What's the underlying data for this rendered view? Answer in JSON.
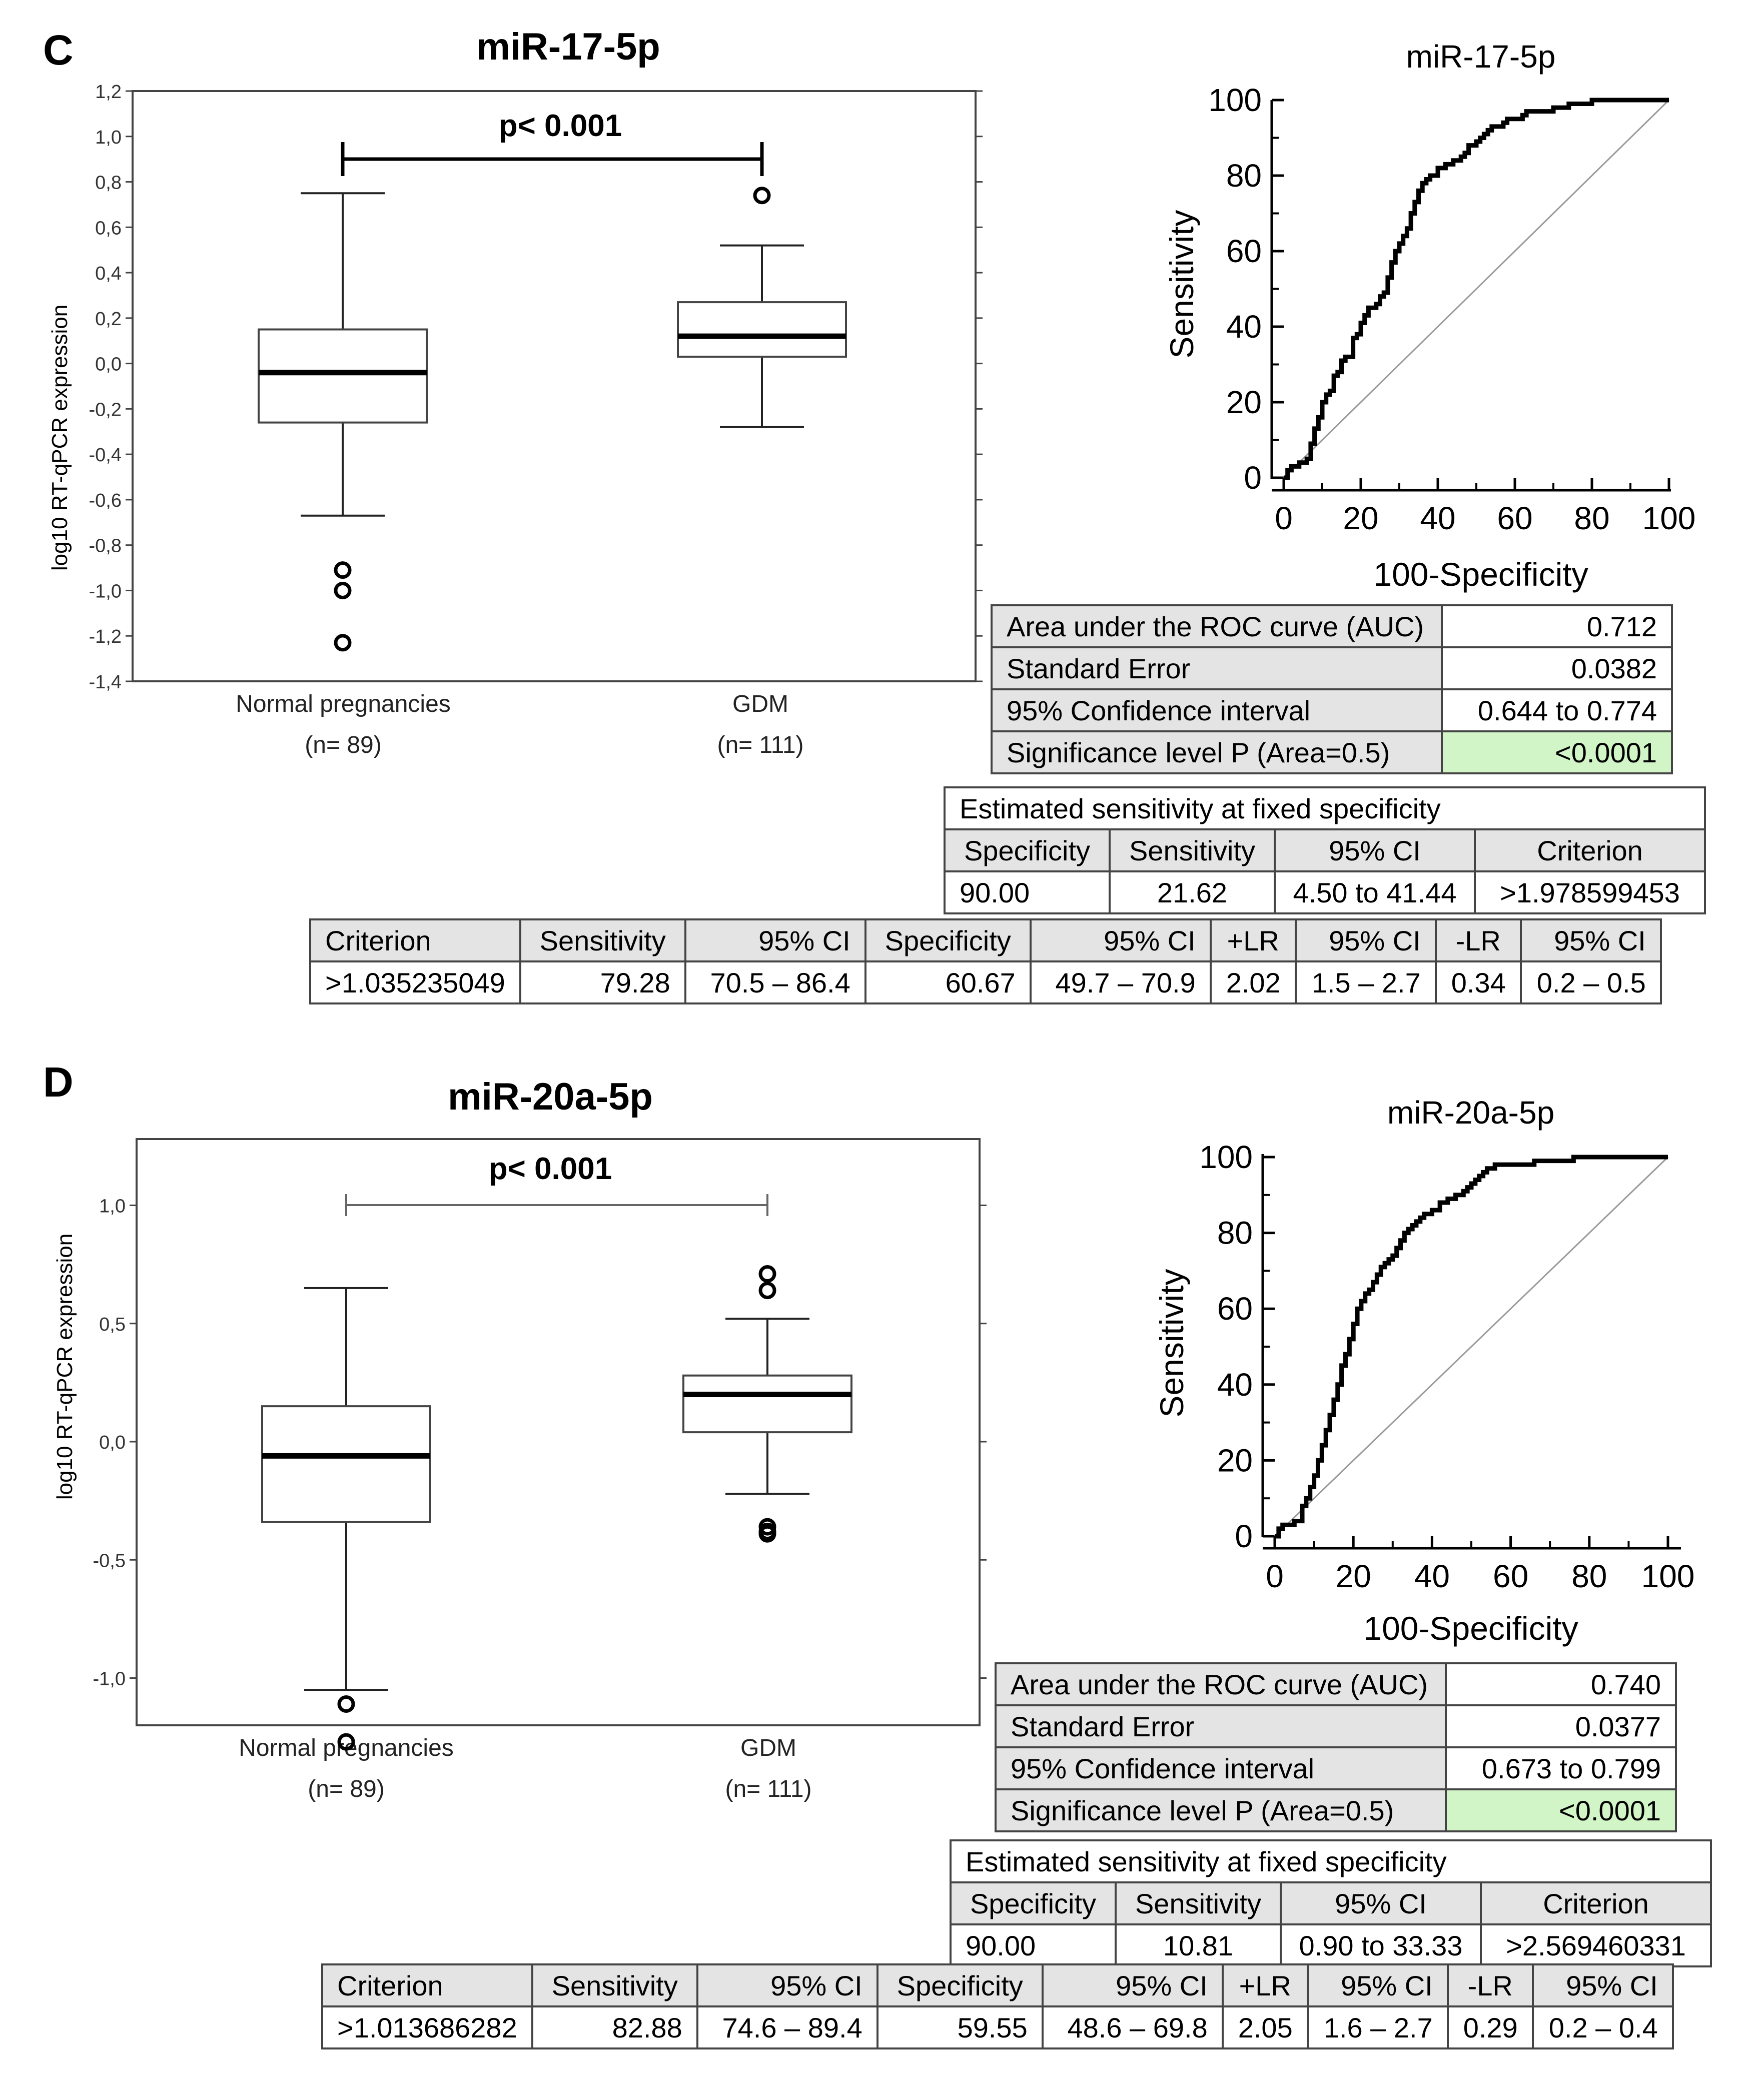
{
  "panels": [
    {
      "letter": "C",
      "boxplot": {
        "title": "miR-17-5p",
        "ylabel": "log10 RT-qPCR expression",
        "ticks": [
          "1,2",
          "1,0",
          "0,8",
          "0,6",
          "0,4",
          "0,2",
          "0,0",
          "-0,2",
          "-0,4",
          "-0,6",
          "-0,8",
          "-1,0",
          "-1,2",
          "-1,4"
        ],
        "pvalue": "p< 0.001",
        "groups": [
          {
            "name": "Normal pregnancies",
            "n": "(n= 89)"
          },
          {
            "name": "GDM",
            "n": "(n= 111)"
          }
        ]
      },
      "roc": {
        "title": "miR-17-5p",
        "xlabel": "100-Specificity",
        "ylabel": "Sensitivity",
        "xticks": [
          "0",
          "20",
          "40",
          "60",
          "80",
          "100"
        ],
        "yticks": [
          "100",
          "80",
          "60",
          "40",
          "20",
          "0"
        ]
      },
      "auc_table": [
        [
          "Area under the ROC curve (AUC)",
          "0.712"
        ],
        [
          "Standard Error",
          "0.0382"
        ],
        [
          "95% Confidence interval",
          "0.644 to 0.774"
        ],
        [
          "Significance level P (Area=0.5)",
          "<0.0001"
        ]
      ],
      "fixed_table": {
        "title": "Estimated sensitivity at fixed specificity",
        "header": [
          "Specificity",
          "Sensitivity",
          "95% CI",
          "Criterion"
        ],
        "row": [
          "90.00",
          "21.62",
          "4.50 to 41.44",
          ">1.978599453"
        ]
      },
      "criterion_table": {
        "header": [
          "Criterion",
          "Sensitivity",
          "95% CI",
          "Specificity",
          "95% CI",
          "+LR",
          "95% CI",
          "-LR",
          "95% CI"
        ],
        "row": [
          ">1.035235049",
          "79.28",
          "70.5 – 86.4",
          "60.67",
          "49.7 – 70.9",
          "2.02",
          "1.5 – 2.7",
          "0.34",
          "0.2 – 0.5"
        ]
      }
    },
    {
      "letter": "D",
      "boxplot": {
        "title": "miR-20a-5p",
        "ylabel": "log10 RT-qPCR expression",
        "ticks": [
          "1,0",
          "0,5",
          "0,0",
          "-0,5",
          "-1,0"
        ],
        "pvalue": "p< 0.001",
        "groups": [
          {
            "name": "Normal pregnancies",
            "n": "(n= 89)"
          },
          {
            "name": "GDM",
            "n": "(n= 111)"
          }
        ]
      },
      "roc": {
        "title": "miR-20a-5p",
        "xlabel": "100-Specificity",
        "ylabel": "Sensitivity",
        "xticks": [
          "0",
          "20",
          "40",
          "60",
          "80",
          "100"
        ],
        "yticks": [
          "100",
          "80",
          "60",
          "40",
          "20",
          "0"
        ]
      },
      "auc_table": [
        [
          "Area under the ROC curve (AUC)",
          "0.740"
        ],
        [
          "Standard Error",
          "0.0377"
        ],
        [
          "95% Confidence interval",
          "0.673 to 0.799"
        ],
        [
          "Significance level P (Area=0.5)",
          "<0.0001"
        ]
      ],
      "fixed_table": {
        "title": "Estimated sensitivity at fixed specificity",
        "header": [
          "Specificity",
          "Sensitivity",
          "95% CI",
          "Criterion"
        ],
        "row": [
          "90.00",
          "10.81",
          "0.90 to 33.33",
          ">2.569460331"
        ]
      },
      "criterion_table": {
        "header": [
          "Criterion",
          "Sensitivity",
          "95% CI",
          "Specificity",
          "95% CI",
          "+LR",
          "95% CI",
          "-LR",
          "95% CI"
        ],
        "row": [
          ">1.013686282",
          "82.88",
          "74.6 – 89.4",
          "59.55",
          "48.6 – 69.8",
          "2.05",
          "1.6 – 2.7",
          "0.29",
          "0.2 – 0.4"
        ]
      }
    }
  ],
  "colors": {
    "significance_cell": "#d2f5c8",
    "header_cell": "#e4e4e4"
  },
  "chart_data": [
    {
      "type": "box",
      "title": "miR-17-5p",
      "ylabel": "log10 RT-qPCR expression",
      "ylim": [
        -1.4,
        1.2
      ],
      "categories": [
        "Normal pregnancies",
        "GDM"
      ],
      "boxes": [
        {
          "min": -0.67,
          "q1": -0.26,
          "median": -0.04,
          "q3": 0.15,
          "max": 0.75,
          "outliers": [
            -0.91,
            -1.0,
            -1.23
          ]
        },
        {
          "min": -0.28,
          "q1": 0.03,
          "median": 0.12,
          "q3": 0.27,
          "max": 0.52,
          "outliers": [
            0.74
          ]
        }
      ]
    },
    {
      "type": "line",
      "title": "miR-17-5p",
      "xlabel": "100-Specificity",
      "ylabel": "Sensitivity",
      "xlim": [
        0,
        100
      ],
      "ylim": [
        0,
        100
      ],
      "series": [
        {
          "x": [
            0,
            1,
            2,
            4,
            6,
            7,
            8,
            9,
            10,
            11,
            12,
            13,
            14,
            15,
            16,
            18,
            19,
            20,
            21,
            22,
            23,
            24,
            25,
            26,
            27,
            28,
            29,
            30,
            31,
            32,
            33,
            34,
            35,
            36,
            37,
            38,
            40,
            41,
            42,
            44,
            46,
            47,
            48,
            49,
            50,
            51,
            52,
            53,
            54,
            56,
            57,
            58,
            60,
            62,
            63,
            66,
            68,
            70,
            72,
            73,
            74,
            76,
            80,
            100
          ],
          "y": [
            0,
            2,
            3,
            4,
            5,
            9,
            13,
            16,
            20,
            22,
            23,
            27,
            28,
            31,
            32,
            37,
            38,
            41,
            43,
            45,
            45,
            46,
            48,
            49,
            53,
            57,
            60,
            62,
            64,
            66,
            70,
            73,
            76,
            78,
            79,
            80,
            82,
            82,
            83,
            84,
            85,
            86,
            88,
            88,
            89,
            90,
            91,
            92,
            93,
            93,
            94,
            95,
            95,
            96,
            97,
            97,
            97,
            98,
            98,
            98,
            99,
            99,
            100,
            100
          ]
        }
      ],
      "reference_line": {
        "x": [
          0,
          100
        ],
        "y": [
          0,
          100
        ]
      }
    },
    {
      "type": "box",
      "title": "miR-20a-5p",
      "ylabel": "log10 RT-qPCR expression",
      "ylim": [
        -1.2,
        1.2
      ],
      "categories": [
        "Normal pregnancies",
        "GDM"
      ],
      "boxes": [
        {
          "min": -1.05,
          "q1": -0.34,
          "median": -0.06,
          "q3": 0.15,
          "max": 0.65,
          "outliers": [
            -1.11,
            -1.27
          ]
        },
        {
          "min": -0.22,
          "q1": 0.04,
          "median": 0.2,
          "q3": 0.28,
          "max": 0.52,
          "outliers": [
            0.71,
            0.64,
            -0.36,
            -0.38,
            -0.39
          ]
        }
      ]
    },
    {
      "type": "line",
      "title": "miR-20a-5p",
      "xlabel": "100-Specificity",
      "ylabel": "Sensitivity",
      "xlim": [
        0,
        100
      ],
      "ylim": [
        0,
        100
      ],
      "series": [
        {
          "x": [
            0,
            1,
            2,
            5,
            7,
            8,
            9,
            10,
            11,
            12,
            13,
            14,
            15,
            16,
            17,
            18,
            19,
            20,
            21,
            22,
            23,
            24,
            25,
            26,
            27,
            28,
            29,
            30,
            31,
            32,
            33,
            34,
            35,
            36,
            37,
            38,
            40,
            42,
            44,
            46,
            48,
            49,
            50,
            51,
            52,
            53,
            54,
            55,
            56,
            58,
            60,
            62,
            64,
            66,
            68,
            70,
            76,
            78,
            80,
            100
          ],
          "y": [
            0,
            2,
            3,
            4,
            8,
            10,
            13,
            16,
            20,
            24,
            28,
            32,
            36,
            40,
            45,
            48,
            52,
            56,
            60,
            62,
            64,
            65,
            67,
            69,
            71,
            72,
            73,
            74,
            76,
            78,
            80,
            81,
            82,
            83,
            84,
            85,
            86,
            88,
            89,
            90,
            91,
            92,
            93,
            94,
            95,
            96,
            97,
            97,
            98,
            98,
            98,
            98,
            98,
            99,
            99,
            99,
            100,
            100,
            100,
            100
          ]
        }
      ],
      "reference_line": {
        "x": [
          0,
          100
        ],
        "y": [
          0,
          100
        ]
      }
    }
  ]
}
